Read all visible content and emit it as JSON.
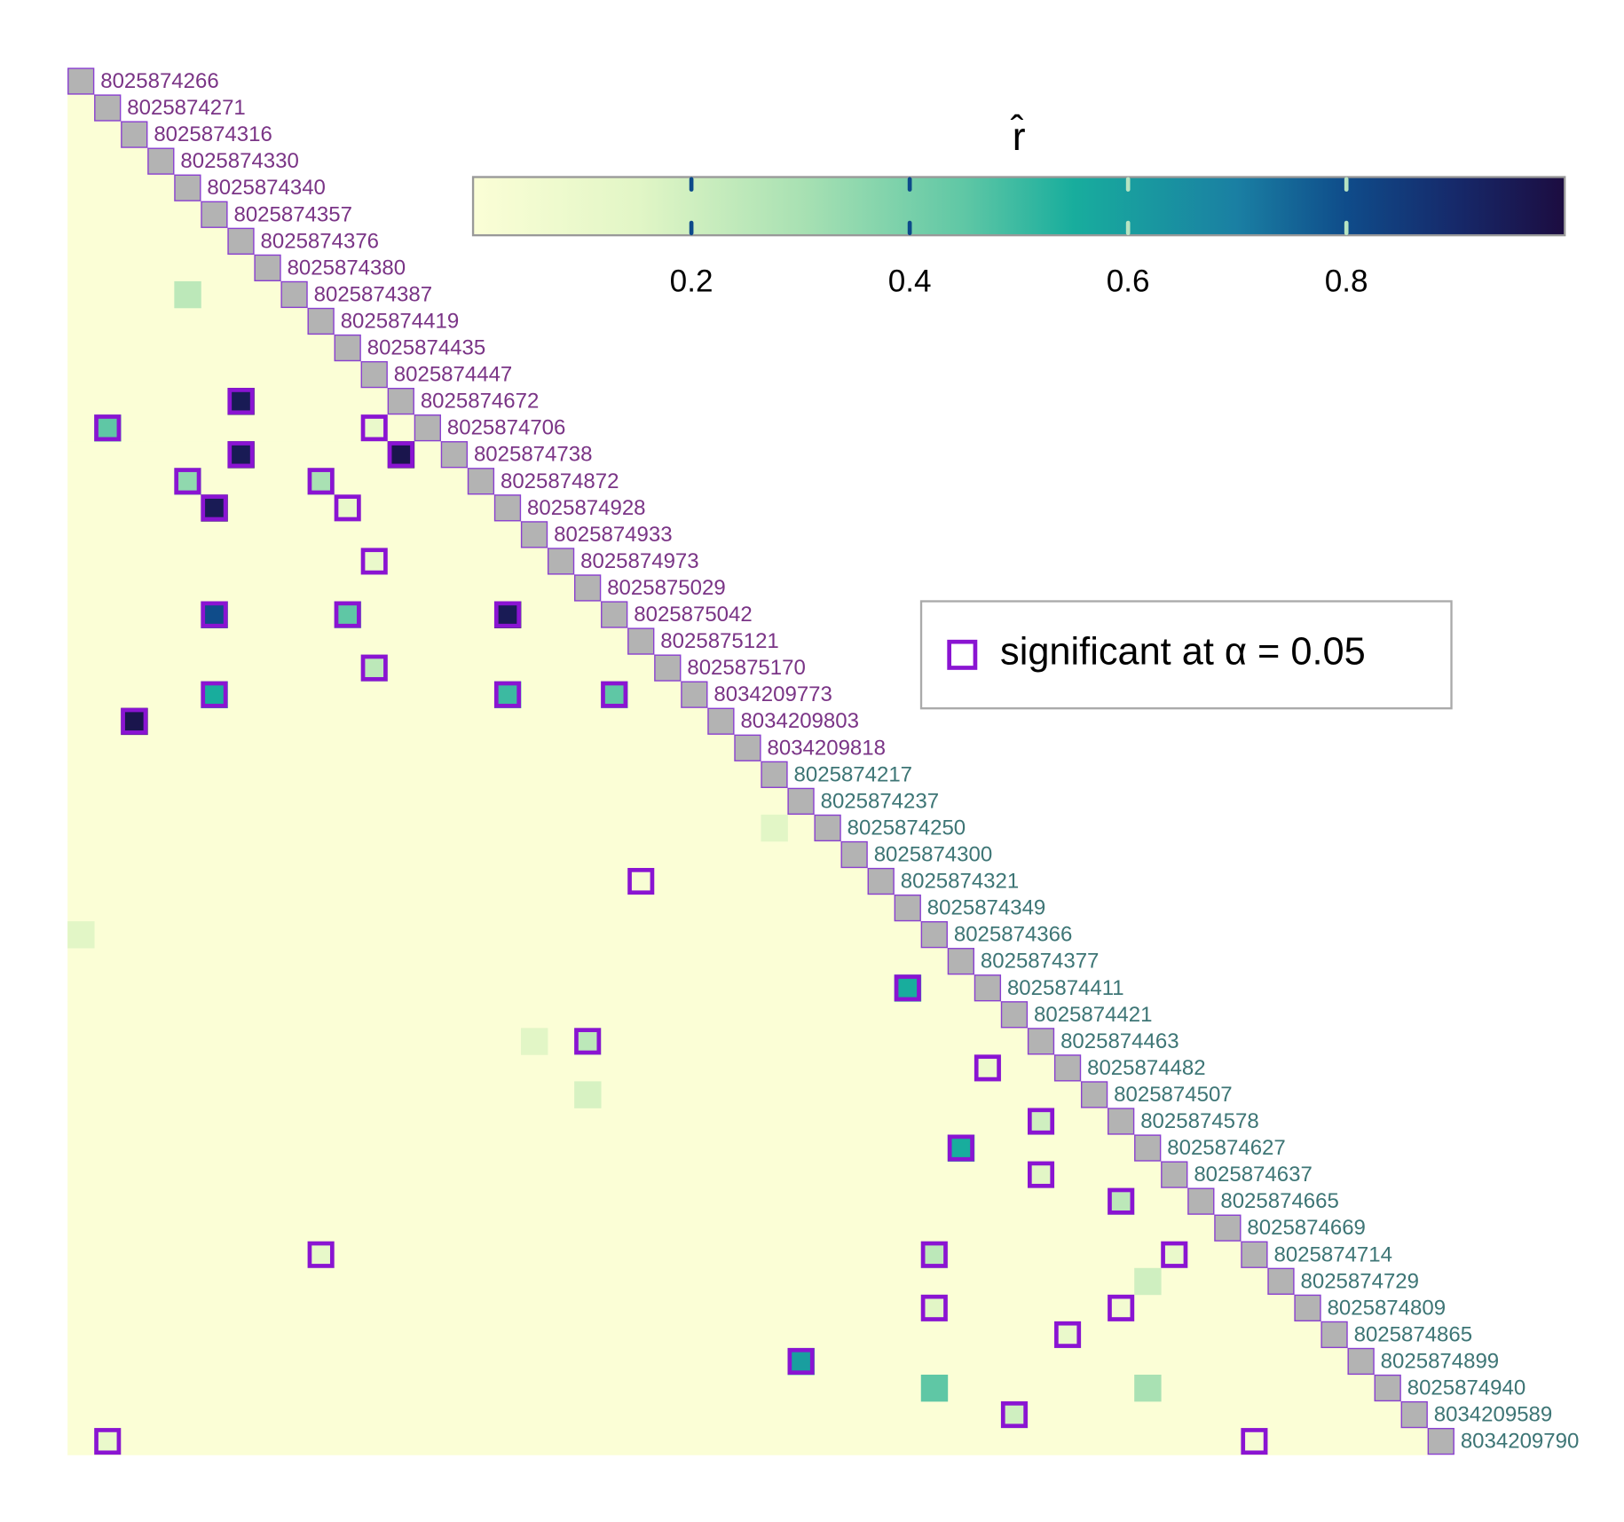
{
  "chart_data": {
    "type": "heatmap",
    "colorbar_title": "r̂",
    "clim": [
      0,
      1
    ],
    "cticks": [
      0.2,
      0.4,
      0.6,
      0.8
    ],
    "colorscale": [
      [
        0,
        "#fbfed6"
      ],
      [
        0.15,
        "#e2f6c6"
      ],
      [
        0.3,
        "#a9e1b3"
      ],
      [
        0.45,
        "#5fc7a5"
      ],
      [
        0.55,
        "#18ad9d"
      ],
      [
        0.7,
        "#1a7fa3"
      ],
      [
        0.8,
        "#0f4c8a"
      ],
      [
        0.9,
        "#16296a"
      ],
      [
        1,
        "#1c0c40"
      ]
    ],
    "diagonal_color": "#b3b3b3",
    "significant_color": "#8a14d2",
    "legend_label": "significant at  α = 0.05",
    "groups": [
      {
        "color": "#7a3486",
        "labels": [
          "8025874266",
          "8025874271",
          "8025874316",
          "8025874330",
          "8025874340",
          "8025874357",
          "8025874376",
          "8025874380",
          "8025874387",
          "8025874419",
          "8025874435",
          "8025874447",
          "8025874672",
          "8025874706",
          "8025874738",
          "8025874872",
          "8025874928",
          "8025874933",
          "8025874973",
          "8025875029",
          "8025875042",
          "8025875121",
          "8025875170",
          "8034209773",
          "8034209803",
          "8034209818"
        ]
      },
      {
        "color": "#3d7575",
        "labels": [
          "8025874217",
          "8025874237",
          "8025874250",
          "8025874300",
          "8025874321",
          "8025874349",
          "8025874366",
          "8025874377",
          "8025874411",
          "8025874421",
          "8025874463",
          "8025874482",
          "8025874507",
          "8025874578",
          "8025874627",
          "8025874637",
          "8025874665",
          "8025874669",
          "8025874714",
          "8025874729",
          "8025874809",
          "8025874865",
          "8025874899",
          "8025874940",
          "8034209589",
          "8034209790"
        ]
      }
    ],
    "cells": [
      {
        "row": 8,
        "col": 4,
        "value": 0.25,
        "significant": false
      },
      {
        "row": 12,
        "col": 6,
        "value": 0.95,
        "significant": true
      },
      {
        "row": 13,
        "col": 1,
        "value": 0.45,
        "significant": true
      },
      {
        "row": 13,
        "col": 11,
        "value": 0.1,
        "significant": true
      },
      {
        "row": 14,
        "col": 6,
        "value": 0.95,
        "significant": true
      },
      {
        "row": 14,
        "col": 12,
        "value": 0.97,
        "significant": true
      },
      {
        "row": 15,
        "col": 4,
        "value": 0.35,
        "significant": true
      },
      {
        "row": 15,
        "col": 9,
        "value": 0.3,
        "significant": true
      },
      {
        "row": 16,
        "col": 5,
        "value": 0.95,
        "significant": true
      },
      {
        "row": 16,
        "col": 10,
        "value": 0.1,
        "significant": true
      },
      {
        "row": 18,
        "col": 11,
        "value": 0.1,
        "significant": true
      },
      {
        "row": 20,
        "col": 5,
        "value": 0.8,
        "significant": true
      },
      {
        "row": 20,
        "col": 10,
        "value": 0.45,
        "significant": true
      },
      {
        "row": 20,
        "col": 16,
        "value": 0.95,
        "significant": true
      },
      {
        "row": 22,
        "col": 11,
        "value": 0.25,
        "significant": true
      },
      {
        "row": 23,
        "col": 5,
        "value": 0.55,
        "significant": true
      },
      {
        "row": 23,
        "col": 16,
        "value": 0.5,
        "significant": true
      },
      {
        "row": 23,
        "col": 20,
        "value": 0.45,
        "significant": true
      },
      {
        "row": 24,
        "col": 2,
        "value": 0.97,
        "significant": true
      },
      {
        "row": 28,
        "col": 26,
        "value": 0.15,
        "significant": false
      },
      {
        "row": 30,
        "col": 21,
        "value": 0.02,
        "significant": true
      },
      {
        "row": 32,
        "col": 0,
        "value": 0.15,
        "significant": false
      },
      {
        "row": 34,
        "col": 31,
        "value": 0.55,
        "significant": true
      },
      {
        "row": 36,
        "col": 17,
        "value": 0.15,
        "significant": false
      },
      {
        "row": 36,
        "col": 19,
        "value": 0.25,
        "significant": true
      },
      {
        "row": 37,
        "col": 34,
        "value": 0.08,
        "significant": true
      },
      {
        "row": 38,
        "col": 19,
        "value": 0.18,
        "significant": false
      },
      {
        "row": 39,
        "col": 36,
        "value": 0.2,
        "significant": true
      },
      {
        "row": 40,
        "col": 33,
        "value": 0.55,
        "significant": true
      },
      {
        "row": 41,
        "col": 36,
        "value": 0.15,
        "significant": true
      },
      {
        "row": 42,
        "col": 39,
        "value": 0.25,
        "significant": true
      },
      {
        "row": 44,
        "col": 9,
        "value": 0.12,
        "significant": true
      },
      {
        "row": 44,
        "col": 32,
        "value": 0.25,
        "significant": true
      },
      {
        "row": 44,
        "col": 41,
        "value": 0.1,
        "significant": true
      },
      {
        "row": 45,
        "col": 40,
        "value": 0.2,
        "significant": false
      },
      {
        "row": 46,
        "col": 32,
        "value": 0.15,
        "significant": true
      },
      {
        "row": 46,
        "col": 39,
        "value": 0.05,
        "significant": true
      },
      {
        "row": 47,
        "col": 37,
        "value": 0.1,
        "significant": true
      },
      {
        "row": 48,
        "col": 27,
        "value": 0.6,
        "significant": true
      },
      {
        "row": 49,
        "col": 32,
        "value": 0.45,
        "significant": false
      },
      {
        "row": 49,
        "col": 40,
        "value": 0.3,
        "significant": false
      },
      {
        "row": 50,
        "col": 35,
        "value": 0.2,
        "significant": true
      },
      {
        "row": 51,
        "col": 1,
        "value": 0.1,
        "significant": true
      },
      {
        "row": 51,
        "col": 44,
        "value": 0.03,
        "significant": true
      }
    ]
  }
}
